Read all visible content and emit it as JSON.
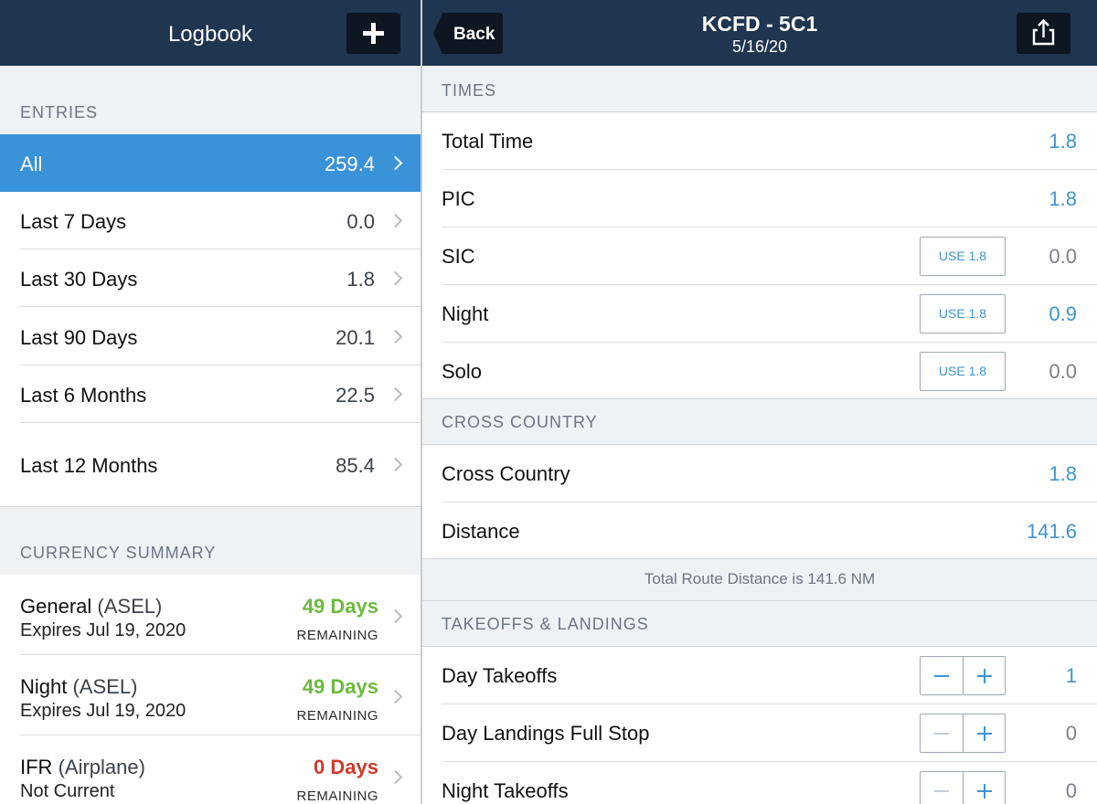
{
  "left": {
    "title": "Logbook",
    "entries_header": "ENTRIES",
    "entries": [
      {
        "label": "All",
        "value": "259.4",
        "active": true
      },
      {
        "label": "Last 7 Days",
        "value": "0.0"
      },
      {
        "label": "Last 30 Days",
        "value": "1.8"
      },
      {
        "label": "Last 90 Days",
        "value": "20.1"
      },
      {
        "label": "Last 6 Months",
        "value": "22.5"
      },
      {
        "label": "Last 12 Months",
        "value": "85.4"
      }
    ],
    "currency_header": "CURRENCY SUMMARY",
    "currency": [
      {
        "title": "General",
        "sub": "(ASEL)",
        "expires": "Expires Jul 19, 2020",
        "days": "49 Days",
        "remaining": "REMAINING",
        "color": "#6cba3c"
      },
      {
        "title": "Night",
        "sub": "(ASEL)",
        "expires": "Expires Jul 19, 2020",
        "days": "49 Days",
        "remaining": "REMAINING",
        "color": "#6cba3c"
      },
      {
        "title": "IFR",
        "sub": "(Airplane)",
        "expires": "Not Current",
        "days": "0 Days",
        "remaining": "REMAINING",
        "color": "#cf3a2a"
      }
    ]
  },
  "right": {
    "back_label": "Back",
    "title": "KCFD - 5C1",
    "subtitle": "5/16/20",
    "times_header": "TIMES",
    "times": [
      {
        "label": "Total Time",
        "value": "1.8",
        "value_color": "blue"
      },
      {
        "label": "PIC",
        "value": "1.8",
        "value_color": "blue"
      },
      {
        "label": "SIC",
        "value": "0.0",
        "value_color": "gray",
        "use": "USE 1.8"
      },
      {
        "label": "Night",
        "value": "0.9",
        "value_color": "blue",
        "use": "USE 1.8"
      },
      {
        "label": "Solo",
        "value": "0.0",
        "value_color": "gray",
        "use": "USE 1.8"
      }
    ],
    "xc_header": "CROSS COUNTRY",
    "xc": [
      {
        "label": "Cross Country",
        "value": "1.8"
      },
      {
        "label": "Distance",
        "value": "141.6"
      }
    ],
    "route_note": "Total Route Distance is 141.6 NM",
    "tl_header": "TAKEOFFS & LANDINGS",
    "takeoffs_landings": [
      {
        "label": "Day Takeoffs",
        "value": "1",
        "value_color": "blue"
      },
      {
        "label": "Day Landings Full Stop",
        "value": "0",
        "value_color": "gray"
      },
      {
        "label": "Night Takeoffs",
        "value": "0",
        "value_color": "gray"
      }
    ],
    "colors": {
      "blue": "#3d94d3",
      "navbar": "#1f3550",
      "active": "#3a92d8"
    }
  }
}
